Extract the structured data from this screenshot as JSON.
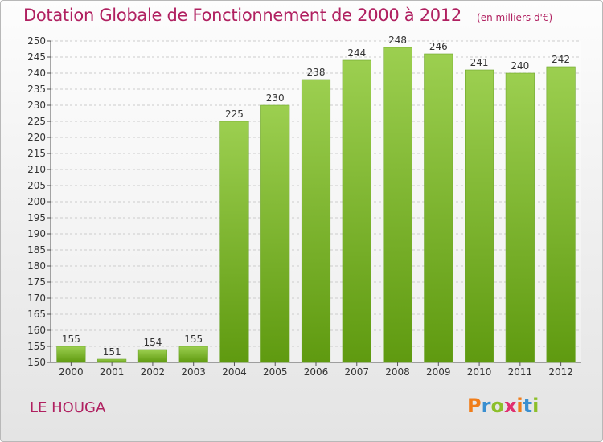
{
  "header": {
    "title": "Dotation Globale de Fonctionnement de 2000 à 2012",
    "unit": "(en milliers d'€)"
  },
  "footer": {
    "commune": "LE HOUGA",
    "logo": "Proxiti"
  },
  "colors": {
    "title": "#b02060",
    "bar_top": "#9ccf50",
    "bar_bottom": "#5f9a10",
    "grid": "#cccccc"
  },
  "chart_data": {
    "type": "bar",
    "title": "Dotation Globale de Fonctionnement de 2000 à 2012",
    "subtitle": "(en milliers d'€)",
    "xlabel": "",
    "ylabel": "",
    "categories": [
      "2000",
      "2001",
      "2002",
      "2003",
      "2004",
      "2005",
      "2006",
      "2007",
      "2008",
      "2009",
      "2010",
      "2011",
      "2012"
    ],
    "values": [
      155,
      151,
      154,
      155,
      225,
      230,
      238,
      244,
      248,
      246,
      241,
      240,
      242
    ],
    "ylim": [
      150,
      250
    ],
    "yticks": [
      150,
      155,
      160,
      165,
      170,
      175,
      180,
      185,
      190,
      195,
      200,
      205,
      210,
      215,
      220,
      225,
      230,
      235,
      240,
      245,
      250
    ],
    "grid": true,
    "data_labels": true
  }
}
